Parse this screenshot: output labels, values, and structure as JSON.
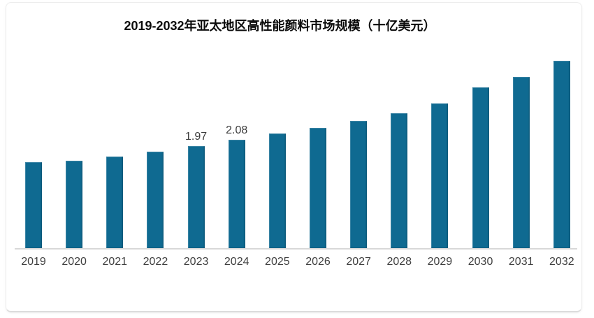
{
  "chart": {
    "title": "2019-2032年亚太地区高性能颜料市场规模（十亿美元）"
  },
  "chart_data": {
    "type": "bar",
    "title": "2019-2032年亚太地区高性能颜料市场规模（十亿美元）",
    "categories": [
      "2019",
      "2020",
      "2021",
      "2022",
      "2023",
      "2024",
      "2025",
      "2026",
      "2027",
      "2028",
      "2029",
      "2030",
      "2031",
      "2032"
    ],
    "values": [
      1.65,
      1.68,
      1.76,
      1.86,
      1.97,
      2.08,
      2.2,
      2.31,
      2.45,
      2.6,
      2.79,
      3.09,
      3.3,
      3.6
    ],
    "data_labels": [
      null,
      null,
      null,
      null,
      "1.97",
      "2.08",
      null,
      null,
      null,
      null,
      null,
      null,
      null,
      null
    ],
    "xlabel": "",
    "ylabel": "",
    "ylim": [
      0,
      3.9
    ],
    "grid": false,
    "legend": "none",
    "bar_color": "#0f6a91",
    "axis_line_color": "#d8d8d8",
    "tick_label_color": "#3f3f3f",
    "data_label_color": "#3c3c3c",
    "title_color": "#0a0a0a",
    "background_color": "#ffffff"
  }
}
